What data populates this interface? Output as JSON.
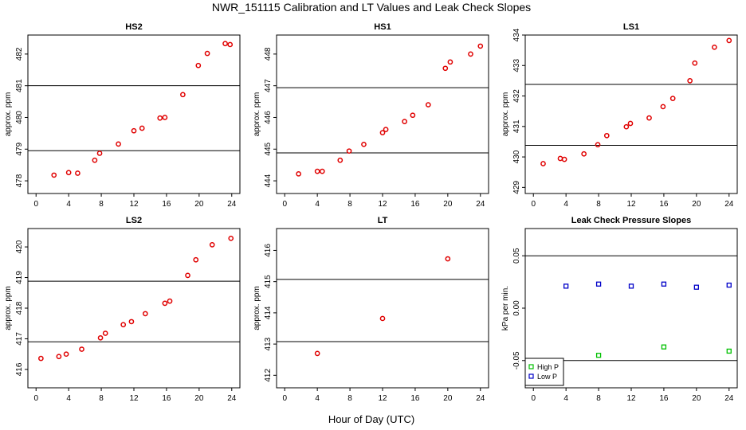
{
  "figure": {
    "title": "NWR_151115  Calibration and LT Values and Leak Check Slopes",
    "x_axis_label": "Hour of Day (UTC)"
  },
  "chart_data": [
    {
      "type": "scatter",
      "id": "hs2",
      "title": "HS2",
      "xlabel": "",
      "ylabel": "approx. ppm",
      "xlim": [
        -1,
        25
      ],
      "xticks": [
        0,
        4,
        8,
        12,
        16,
        20,
        24
      ],
      "ylim": [
        477.6,
        482.6
      ],
      "yticks": [
        478,
        479,
        480,
        481,
        482
      ],
      "hlines": [
        478.95,
        481.0
      ],
      "series": [
        {
          "marker": "circle",
          "color": "#e00000",
          "x": [
            2.2,
            4.0,
            5.1,
            7.2,
            7.8,
            10.1,
            12.0,
            13.0,
            15.2,
            15.8,
            18.0,
            19.9,
            21.0,
            23.2,
            23.8
          ],
          "y": [
            478.18,
            478.26,
            478.24,
            478.65,
            478.87,
            479.16,
            479.58,
            479.66,
            479.98,
            480.0,
            480.72,
            481.64,
            482.02,
            482.33,
            482.3
          ]
        }
      ]
    },
    {
      "type": "scatter",
      "id": "hs1",
      "title": "HS1",
      "xlabel": "",
      "ylabel": "approx. ppm",
      "xlim": [
        -1,
        25
      ],
      "xticks": [
        0,
        4,
        8,
        12,
        16,
        20,
        24
      ],
      "ylim": [
        443.6,
        448.6
      ],
      "yticks": [
        444,
        445,
        446,
        447,
        448
      ],
      "hlines": [
        444.88,
        446.94
      ],
      "series": [
        {
          "marker": "circle",
          "color": "#e00000",
          "x": [
            1.7,
            4.0,
            4.6,
            6.8,
            7.9,
            9.7,
            12.0,
            12.4,
            14.7,
            15.7,
            17.6,
            19.7,
            20.3,
            22.8,
            24.0
          ],
          "y": [
            444.22,
            444.3,
            444.3,
            444.65,
            444.94,
            445.15,
            445.52,
            445.62,
            445.87,
            446.07,
            446.4,
            447.55,
            447.75,
            448.0,
            448.25
          ]
        }
      ]
    },
    {
      "type": "scatter",
      "id": "ls1",
      "title": "LS1",
      "xlabel": "",
      "ylabel": "approx. ppm",
      "xlim": [
        -1,
        25
      ],
      "xticks": [
        0,
        4,
        8,
        12,
        16,
        20,
        24
      ],
      "ylim": [
        428.8,
        434.0
      ],
      "yticks": [
        429,
        430,
        431,
        432,
        433,
        434
      ],
      "hlines": [
        430.38,
        432.38
      ],
      "series": [
        {
          "marker": "circle",
          "color": "#e00000",
          "x": [
            1.2,
            3.3,
            3.8,
            6.2,
            7.9,
            9.0,
            11.4,
            11.9,
            14.2,
            15.9,
            17.1,
            19.2,
            19.8,
            22.2,
            24.0
          ],
          "y": [
            429.78,
            429.95,
            429.92,
            430.1,
            430.4,
            430.7,
            430.99,
            431.1,
            431.28,
            431.65,
            431.92,
            432.5,
            433.08,
            433.6,
            433.82
          ]
        }
      ]
    },
    {
      "type": "scatter",
      "id": "ls2",
      "title": "LS2",
      "xlabel": "",
      "ylabel": "approx. ppm",
      "xlim": [
        -1,
        25
      ],
      "xticks": [
        0,
        4,
        8,
        12,
        16,
        20,
        24
      ],
      "ylim": [
        415.4,
        420.6
      ],
      "yticks": [
        416,
        417,
        418,
        419,
        420
      ],
      "hlines": [
        416.9,
        418.88
      ],
      "series": [
        {
          "marker": "circle",
          "color": "#e00000",
          "x": [
            0.6,
            2.8,
            3.7,
            5.6,
            7.9,
            8.5,
            10.7,
            11.7,
            13.4,
            15.8,
            16.4,
            18.6,
            19.6,
            21.6,
            23.9
          ],
          "y": [
            416.36,
            416.42,
            416.5,
            416.66,
            417.03,
            417.18,
            417.46,
            417.56,
            417.82,
            418.16,
            418.23,
            419.07,
            419.58,
            420.07,
            420.28
          ]
        }
      ]
    },
    {
      "type": "scatter",
      "id": "lt",
      "title": "LT",
      "xlabel": "",
      "ylabel": "approx. ppm",
      "xlim": [
        -1,
        25
      ],
      "xticks": [
        0,
        4,
        8,
        12,
        16,
        20,
        24
      ],
      "ylim": [
        411.6,
        416.7
      ],
      "yticks": [
        412,
        413,
        414,
        415,
        416
      ],
      "hlines": [
        413.08,
        415.07
      ],
      "series": [
        {
          "marker": "circle",
          "color": "#e00000",
          "x": [
            4.0,
            12.0,
            20.0
          ],
          "y": [
            412.7,
            413.82,
            415.73
          ]
        }
      ]
    },
    {
      "type": "scatter",
      "id": "leak",
      "title": "Leak Check Pressure Slopes",
      "xlabel": "",
      "ylabel": "kPa per min.",
      "xlim": [
        -1,
        25
      ],
      "xticks": [
        0,
        4,
        8,
        12,
        16,
        20,
        24
      ],
      "ylim": [
        -0.076,
        0.076
      ],
      "yticks": [
        -0.05,
        0.0,
        0.05
      ],
      "ytick_labels": [
        "-0.05",
        "0.00",
        "0.05"
      ],
      "hlines": [
        -0.05,
        0.05
      ],
      "legend": {
        "position": "bottom-left",
        "entries": [
          "High P",
          "Low P"
        ]
      },
      "series": [
        {
          "name": "High P",
          "marker": "square",
          "color": "#00c000",
          "x": [
            8.0,
            16.0,
            24.0
          ],
          "y": [
            -0.045,
            -0.037,
            -0.041
          ]
        },
        {
          "name": "Low P",
          "marker": "square",
          "color": "#0000c8",
          "x": [
            4.0,
            8.0,
            12.0,
            16.0,
            20.0,
            24.0
          ],
          "y": [
            0.021,
            0.023,
            0.021,
            0.023,
            0.02,
            0.022
          ]
        }
      ]
    }
  ]
}
